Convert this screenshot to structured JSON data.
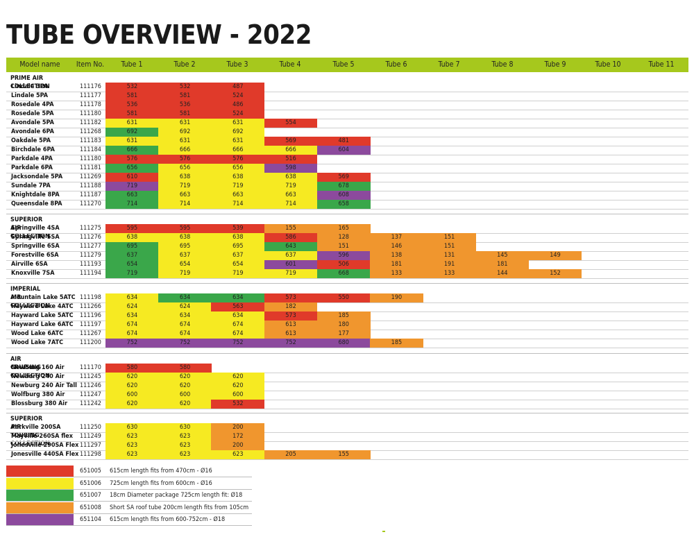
{
  "title": "TUBE OVERVIEW - 2022",
  "header": {
    "model_name": "Model name",
    "item_no": "Item No.",
    "tubes": [
      "Tube 1",
      "Tube 2",
      "Tube 3",
      "Tube 4",
      "Tube 5",
      "Tube 6",
      "Tube 7",
      "Tube 8",
      "Tube 9",
      "Tube 10",
      "Tube 11"
    ]
  },
  "colors": {
    "red": "#e03a2a",
    "yellow": "#f6ea22",
    "green": "#3aa74a",
    "orange": "#f0962e",
    "purple": "#8c4a9d",
    "header_bg": "#a6c81d"
  },
  "sections": [
    {
      "title": "PRIME AIR COLLECTION",
      "rows": [
        {
          "model": "Lindale 3PA",
          "item": "111176",
          "tubes": [
            [
              "532",
              "red"
            ],
            [
              "532",
              "red"
            ],
            [
              "487",
              "red"
            ]
          ]
        },
        {
          "model": "Lindale 5PA",
          "item": "111177",
          "tubes": [
            [
              "581",
              "red"
            ],
            [
              "581",
              "red"
            ],
            [
              "524",
              "red"
            ]
          ]
        },
        {
          "model": "Rosedale 4PA",
          "item": "111178",
          "tubes": [
            [
              "536",
              "red"
            ],
            [
              "536",
              "red"
            ],
            [
              "486",
              "red"
            ]
          ]
        },
        {
          "model": "Rosedale 5PA",
          "item": "111180",
          "tubes": [
            [
              "581",
              "red"
            ],
            [
              "581",
              "red"
            ],
            [
              "524",
              "red"
            ]
          ]
        },
        {
          "model": "Avondale 5PA",
          "item": "111182",
          "tubes": [
            [
              "631",
              "yellow"
            ],
            [
              "631",
              "yellow"
            ],
            [
              "631",
              "yellow"
            ],
            [
              "554",
              "red"
            ]
          ]
        },
        {
          "model": "Avondale 6PA",
          "item": "111268",
          "tubes": [
            [
              "692",
              "green"
            ],
            [
              "692",
              "yellow"
            ],
            [
              "692",
              "yellow"
            ]
          ]
        },
        {
          "model": "Oakdale 5PA",
          "item": "111183",
          "tubes": [
            [
              "631",
              "yellow"
            ],
            [
              "631",
              "yellow"
            ],
            [
              "631",
              "yellow"
            ],
            [
              "569",
              "red"
            ],
            [
              "481",
              "red"
            ]
          ]
        },
        {
          "model": "Birchdale 6PA",
          "item": "111184",
          "tubes": [
            [
              "666",
              "green"
            ],
            [
              "666",
              "yellow"
            ],
            [
              "666",
              "yellow"
            ],
            [
              "666",
              "yellow"
            ],
            [
              "604",
              "purple"
            ]
          ]
        },
        {
          "model": "Parkdale 4PA",
          "item": "111180",
          "tubes": [
            [
              "576",
              "red"
            ],
            [
              "576",
              "red"
            ],
            [
              "576",
              "red"
            ],
            [
              "516",
              "red"
            ]
          ]
        },
        {
          "model": "Parkdale 6PA",
          "item": "111181",
          "tubes": [
            [
              "656",
              "green"
            ],
            [
              "656",
              "yellow"
            ],
            [
              "656",
              "yellow"
            ],
            [
              "598",
              "purple"
            ]
          ]
        },
        {
          "model": "Jacksondale 5PA",
          "item": "111269",
          "tubes": [
            [
              "610",
              "red"
            ],
            [
              "638",
              "yellow"
            ],
            [
              "638",
              "yellow"
            ],
            [
              "638",
              "yellow"
            ],
            [
              "569",
              "red"
            ]
          ]
        },
        {
          "model": "Sundale 7PA",
          "item": "111188",
          "tubes": [
            [
              "719",
              "purple"
            ],
            [
              "719",
              "yellow"
            ],
            [
              "719",
              "yellow"
            ],
            [
              "719",
              "yellow"
            ],
            [
              "678",
              "green"
            ]
          ]
        },
        {
          "model": "Knightdale 8PA",
          "item": "111187",
          "tubes": [
            [
              "663",
              "green"
            ],
            [
              "663",
              "yellow"
            ],
            [
              "663",
              "yellow"
            ],
            [
              "663",
              "yellow"
            ],
            [
              "608",
              "purple"
            ]
          ]
        },
        {
          "model": "Queensdale 8PA",
          "item": "111270",
          "tubes": [
            [
              "714",
              "green"
            ],
            [
              "714",
              "yellow"
            ],
            [
              "714",
              "yellow"
            ],
            [
              "714",
              "yellow"
            ],
            [
              "658",
              "green"
            ]
          ]
        }
      ]
    },
    {
      "title": "SUPERIOR AIR COLLECTION",
      "rows": [
        {
          "model": "Springville 4SA",
          "item": "111275",
          "tubes": [
            [
              "595",
              "red"
            ],
            [
              "595",
              "red"
            ],
            [
              "539",
              "red"
            ],
            [
              "155",
              "orange"
            ],
            [
              "165",
              "orange"
            ]
          ]
        },
        {
          "model": "Springville 5SA",
          "item": "111276",
          "tubes": [
            [
              "638",
              "yellow"
            ],
            [
              "638",
              "yellow"
            ],
            [
              "638",
              "yellow"
            ],
            [
              "586",
              "red"
            ],
            [
              "128",
              "orange"
            ],
            [
              "137",
              "orange"
            ],
            [
              "151",
              "orange"
            ]
          ]
        },
        {
          "model": "Springville 6SA",
          "item": "111277",
          "tubes": [
            [
              "695",
              "green"
            ],
            [
              "695",
              "yellow"
            ],
            [
              "695",
              "yellow"
            ],
            [
              "643",
              "green"
            ],
            [
              "151",
              "orange"
            ],
            [
              "146",
              "orange"
            ],
            [
              "151",
              "orange"
            ]
          ]
        },
        {
          "model": "Forestville 6SA",
          "item": "111279",
          "tubes": [
            [
              "637",
              "green"
            ],
            [
              "637",
              "yellow"
            ],
            [
              "637",
              "yellow"
            ],
            [
              "637",
              "yellow"
            ],
            [
              "596",
              "purple"
            ],
            [
              "138",
              "orange"
            ],
            [
              "131",
              "orange"
            ],
            [
              "145",
              "orange"
            ],
            [
              "149",
              "orange"
            ]
          ]
        },
        {
          "model": "Airville 6SA",
          "item": "111193",
          "tubes": [
            [
              "654",
              "green"
            ],
            [
              "654",
              "yellow"
            ],
            [
              "654",
              "yellow"
            ],
            [
              "601",
              "purple"
            ],
            [
              "506",
              "red"
            ],
            [
              "181",
              "orange"
            ],
            [
              "191",
              "orange"
            ],
            [
              "181",
              "orange"
            ]
          ]
        },
        {
          "model": "Knoxville 7SA",
          "item": "111194",
          "tubes": [
            [
              "719",
              "green"
            ],
            [
              "719",
              "yellow"
            ],
            [
              "719",
              "yellow"
            ],
            [
              "719",
              "yellow"
            ],
            [
              "668",
              "green"
            ],
            [
              "133",
              "orange"
            ],
            [
              "133",
              "orange"
            ],
            [
              "144",
              "orange"
            ],
            [
              "152",
              "orange"
            ]
          ]
        }
      ]
    },
    {
      "title": "IMPERIAL AIR COLLECTION",
      "rows": [
        {
          "model": "Mountain Lake 5ATC",
          "item": "111198",
          "tubes": [
            [
              "634",
              "yellow"
            ],
            [
              "634",
              "green"
            ],
            [
              "634",
              "green"
            ],
            [
              "573",
              "red"
            ],
            [
              "550",
              "red"
            ],
            [
              "190",
              "orange"
            ]
          ]
        },
        {
          "model": "Hayward Lake 4ATC",
          "item": "111266",
          "tubes": [
            [
              "624",
              "yellow"
            ],
            [
              "624",
              "yellow"
            ],
            [
              "563",
              "red"
            ],
            [
              "182",
              "orange"
            ]
          ]
        },
        {
          "model": "Hayward Lake 5ATC",
          "item": "111196",
          "tubes": [
            [
              "634",
              "yellow"
            ],
            [
              "634",
              "yellow"
            ],
            [
              "634",
              "yellow"
            ],
            [
              "573",
              "red"
            ],
            [
              "185",
              "orange"
            ]
          ]
        },
        {
          "model": "Hayward Lake 6ATC",
          "item": "111197",
          "tubes": [
            [
              "674",
              "yellow"
            ],
            [
              "674",
              "yellow"
            ],
            [
              "674",
              "yellow"
            ],
            [
              "613",
              "orange"
            ],
            [
              "180",
              "orange"
            ]
          ]
        },
        {
          "model": "Wood Lake 6ATC",
          "item": "111267",
          "tubes": [
            [
              "674",
              "yellow"
            ],
            [
              "674",
              "yellow"
            ],
            [
              "674",
              "yellow"
            ],
            [
              "613",
              "orange"
            ],
            [
              "177",
              "orange"
            ]
          ]
        },
        {
          "model": "Wood Lake 7ATC",
          "item": "111200",
          "tubes": [
            [
              "752",
              "purple"
            ],
            [
              "752",
              "purple"
            ],
            [
              "752",
              "purple"
            ],
            [
              "752",
              "purple"
            ],
            [
              "680",
              "purple"
            ],
            [
              "185",
              "orange"
            ]
          ]
        }
      ]
    },
    {
      "title": "AIR CRUISING COLLECTION",
      "rows": [
        {
          "model": "Newburg 160 Air",
          "item": "111170",
          "tubes": [
            [
              "580",
              "red"
            ],
            [
              "580",
              "red"
            ]
          ]
        },
        {
          "model": "Newburg 240 Air",
          "item": "111245",
          "tubes": [
            [
              "620",
              "yellow"
            ],
            [
              "620",
              "yellow"
            ],
            [
              "620",
              "yellow"
            ]
          ]
        },
        {
          "model": "Newburg 240 Air Tall",
          "item": "111246",
          "tubes": [
            [
              "620",
              "yellow"
            ],
            [
              "620",
              "yellow"
            ],
            [
              "620",
              "yellow"
            ]
          ]
        },
        {
          "model": "Wolfburg 380 Air",
          "item": "111247",
          "tubes": [
            [
              "600",
              "yellow"
            ],
            [
              "600",
              "yellow"
            ],
            [
              "600",
              "yellow"
            ]
          ]
        },
        {
          "model": "Blossburg 380 Air",
          "item": "111242",
          "tubes": [
            [
              "620",
              "yellow"
            ],
            [
              "620",
              "yellow"
            ],
            [
              "532",
              "red"
            ]
          ]
        }
      ]
    },
    {
      "title": "SUPERIOR AIR TOURING COLLECTION",
      "rows": [
        {
          "model": "Parkville 200SA",
          "item": "111250",
          "tubes": [
            [
              "630",
              "yellow"
            ],
            [
              "630",
              "yellow"
            ],
            [
              "200",
              "orange"
            ]
          ]
        },
        {
          "model": "Mayville 260SA flex",
          "item": "111249",
          "tubes": [
            [
              "623",
              "yellow"
            ],
            [
              "623",
              "yellow"
            ],
            [
              "172",
              "orange"
            ]
          ]
        },
        {
          "model": "Jonesville 290SA Flex",
          "item": "111297",
          "tubes": [
            [
              "623",
              "yellow"
            ],
            [
              "623",
              "yellow"
            ],
            [
              "200",
              "orange"
            ]
          ]
        },
        {
          "model": "Jonesville 440SA Flex",
          "item": "111298",
          "tubes": [
            [
              "623",
              "yellow"
            ],
            [
              "623",
              "yellow"
            ],
            [
              "623",
              "yellow"
            ],
            [
              "205",
              "orange"
            ],
            [
              "155",
              "orange"
            ]
          ]
        }
      ]
    }
  ],
  "legend": [
    {
      "color": "red",
      "code": "651005",
      "text": "615cm length fits from 470cm - Ø16"
    },
    {
      "color": "yellow",
      "code": "651006",
      "text": "725cm length fits from 600cm - Ø16"
    },
    {
      "color": "green",
      "code": "651007",
      "text": "18cm Diameter package 725cm length fit: Ø18"
    },
    {
      "color": "orange",
      "code": "651008",
      "text": "Short SA roof tube 200cm length fits from 105cm"
    },
    {
      "color": "purple",
      "code": "651104",
      "text": "615cm length fits from 600-752cm - Ø18"
    }
  ]
}
